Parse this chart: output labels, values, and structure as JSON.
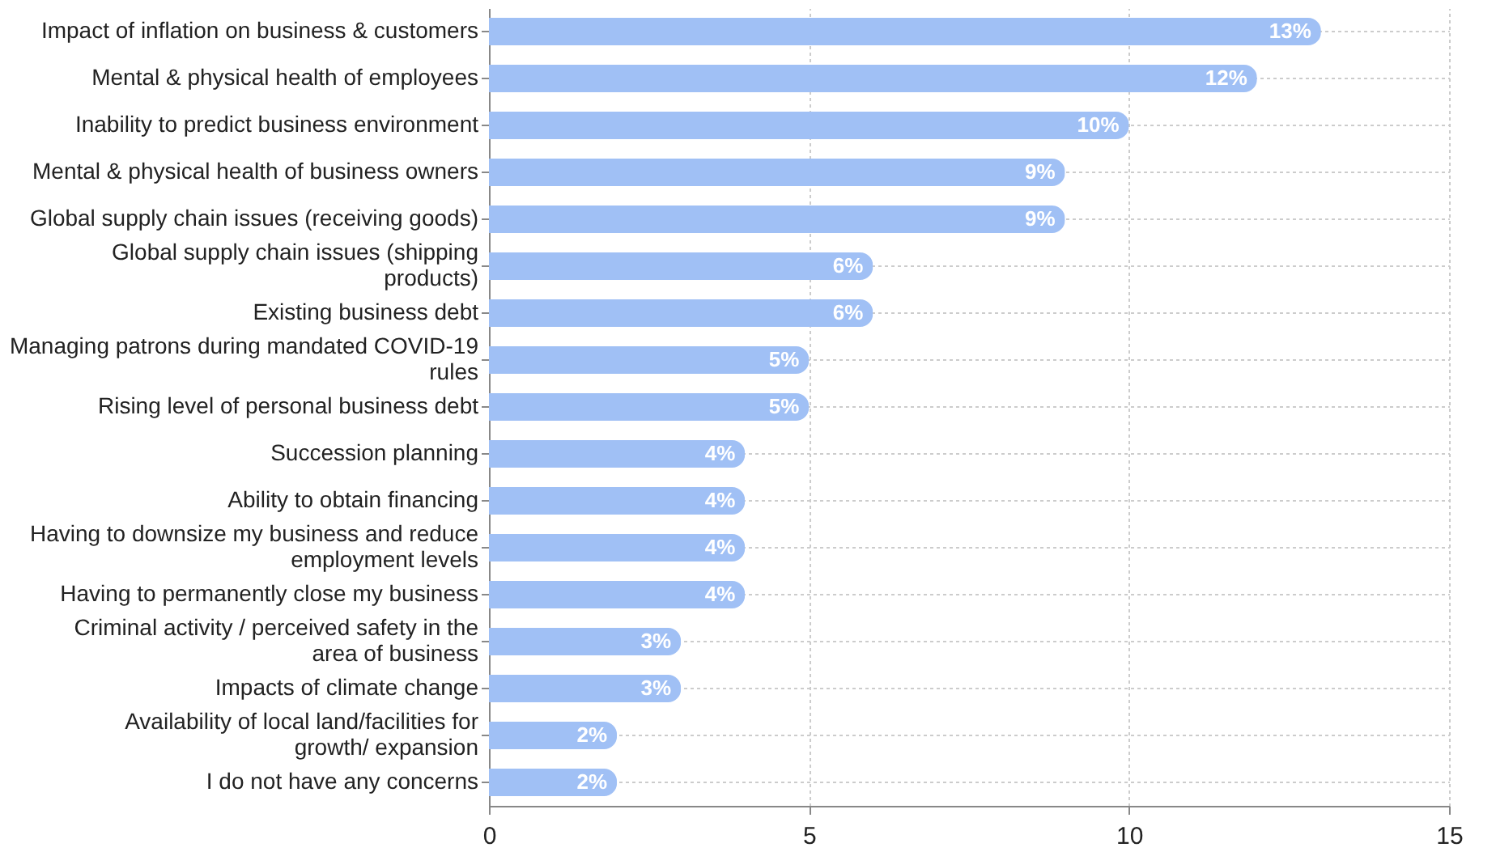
{
  "chart_data": {
    "type": "bar",
    "orientation": "horizontal",
    "categories": [
      "Impact of inflation on business & customers",
      "Mental & physical health of employees",
      "Inability to predict business environment",
      "Mental & physical health of business owners",
      "Global supply chain issues (receiving goods)",
      "Global supply chain issues (shipping products)",
      "Existing business debt",
      "Managing patrons during mandated COVID-19 rules",
      "Rising level of personal business debt",
      "Succession planning",
      "Ability to obtain financing",
      "Having to downsize my business and reduce employment levels",
      "Having to permanently close my business",
      "Criminal activity / perceived safety in the area of business",
      "Impacts of climate change",
      "Availability of local land/facilities for growth/ expansion",
      "I do not have any concerns"
    ],
    "values": [
      13,
      12,
      10,
      9,
      9,
      6,
      6,
      5,
      5,
      4,
      4,
      4,
      4,
      3,
      3,
      2,
      2
    ],
    "value_labels": [
      "13%",
      "12%",
      "10%",
      "9%",
      "9%",
      "6%",
      "6%",
      "5%",
      "5%",
      "4%",
      "4%",
      "4%",
      "4%",
      "3%",
      "3%",
      "2%",
      "2%"
    ],
    "color": "#a0c0f5",
    "xlim": [
      0,
      15
    ],
    "xticks": [
      0,
      5,
      10,
      15
    ],
    "grid": true
  }
}
